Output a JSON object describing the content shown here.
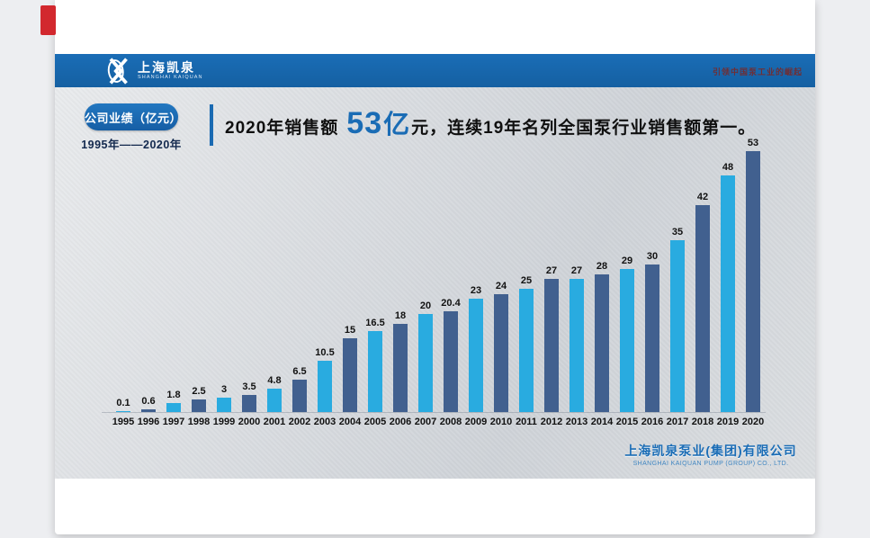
{
  "header": {
    "logo_cn": "上海凯泉",
    "logo_en": "SHANGHAI KAIQUAN",
    "slogan": "引领中国泵工业的崛起"
  },
  "intro": {
    "badge": "公司业绩（亿元）",
    "range": "1995年——2020年"
  },
  "title": {
    "prefix": "2020年销售额",
    "highlight_value": "53",
    "highlight_unit": "亿",
    "suffix": "元，连续19年名列全国泵行业销售额第一。"
  },
  "footer": {
    "company_cn": "上海凯泉泵业(集团)有限公司",
    "company_en": "SHANGHAI KAIQUAN PUMP (GROUP) CO., LTD."
  },
  "chart_data": {
    "type": "bar",
    "title": "公司业绩（亿元） 1995年——2020年",
    "categories": [
      "1995",
      "1996",
      "1997",
      "1998",
      "1999",
      "2000",
      "2001",
      "2002",
      "2003",
      "2004",
      "2005",
      "2006",
      "2007",
      "2008",
      "2009",
      "2010",
      "2011",
      "2012",
      "2013",
      "2014",
      "2015",
      "2016",
      "2017",
      "2018",
      "2019",
      "2020"
    ],
    "values": [
      0.1,
      0.6,
      1.8,
      2.5,
      3,
      3.5,
      4.8,
      6.5,
      10.5,
      15,
      16.5,
      18,
      20,
      20.4,
      23,
      24,
      25,
      27,
      27,
      28,
      29,
      30,
      35,
      42,
      48,
      53
    ],
    "bar_colors": [
      "#29abe0",
      "#41608f"
    ],
    "bar_color_rule": "odd years bright blue, even years dark slate (alternating, 1995 = bright)",
    "value_labels": true,
    "xlabel": "",
    "ylabel": "",
    "ylim": [
      0,
      53
    ],
    "grid": false,
    "legend": false
  },
  "colors": {
    "header_blue": "#1a6db6",
    "badge_blue": "#1b6ab4",
    "bar_bright_blue": "#29abe0",
    "bar_dark_slate": "#41608f",
    "title_highlight_blue": "#1a6cb5",
    "corner_tab_red": "#d2282e",
    "slogan_dark_red": "#6e2f36",
    "footer_blue": "#1a6cb5"
  }
}
